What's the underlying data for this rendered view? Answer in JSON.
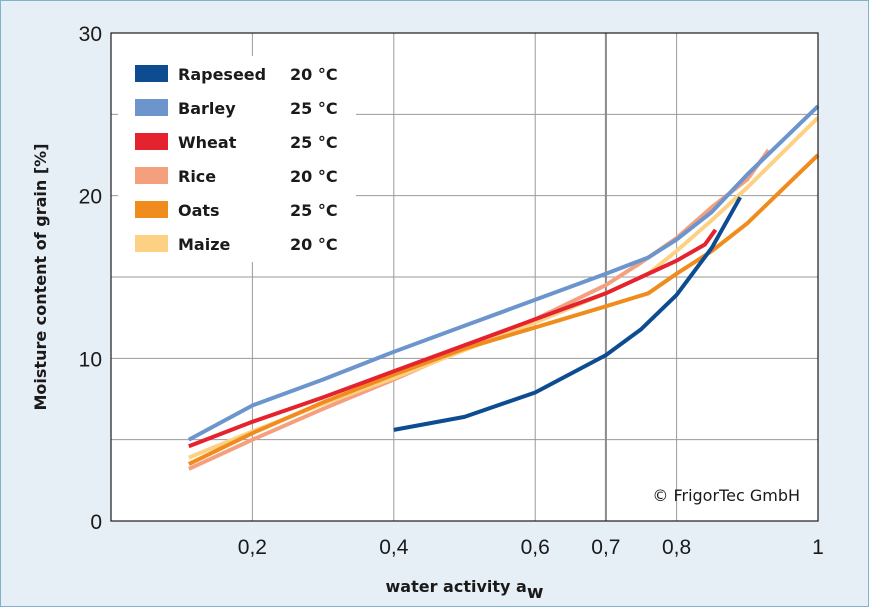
{
  "chart_data": {
    "type": "line",
    "title": "",
    "xlabel": "water activity a",
    "xlabel_subscript": "w",
    "ylabel": "Moisture content of grain [%]",
    "xlim": [
      0,
      1
    ],
    "ylim": [
      0,
      30
    ],
    "x_ticks": [
      {
        "value": 0.2,
        "label": "0,2"
      },
      {
        "value": 0.4,
        "label": "0,4"
      },
      {
        "value": 0.6,
        "label": "0,6"
      },
      {
        "value": 0.7,
        "label": "0,7"
      },
      {
        "value": 0.8,
        "label": "0,8"
      },
      {
        "value": 1.0,
        "label": "1"
      }
    ],
    "y_ticks": [
      {
        "value": 0,
        "label": "0"
      },
      {
        "value": 10,
        "label": "10"
      },
      {
        "value": 20,
        "label": "20"
      },
      {
        "value": 30,
        "label": "30"
      }
    ],
    "y_gridlines": [
      5,
      10,
      15,
      20,
      25
    ],
    "x_gridlines": [
      0.2,
      0.4,
      0.6,
      0.7,
      0.8
    ],
    "grid": true,
    "legend_position": "top-left",
    "annotation": "© FrigorTec GmbH",
    "series": [
      {
        "name": "Rapeseed",
        "temperature": "20 °C",
        "color": "#0e4c92",
        "points": [
          [
            0.4,
            5.6
          ],
          [
            0.5,
            6.4
          ],
          [
            0.6,
            7.9
          ],
          [
            0.7,
            10.2
          ],
          [
            0.75,
            11.8
          ],
          [
            0.8,
            13.9
          ],
          [
            0.85,
            16.8
          ],
          [
            0.89,
            19.9
          ]
        ]
      },
      {
        "name": "Barley",
        "temperature": "25 °C",
        "color": "#6b95cc",
        "points": [
          [
            0.11,
            5.0
          ],
          [
            0.2,
            7.1
          ],
          [
            0.3,
            8.7
          ],
          [
            0.4,
            10.4
          ],
          [
            0.5,
            12.0
          ],
          [
            0.6,
            13.6
          ],
          [
            0.7,
            15.2
          ],
          [
            0.76,
            16.2
          ],
          [
            0.8,
            17.3
          ],
          [
            0.85,
            19.0
          ],
          [
            0.9,
            21.3
          ],
          [
            1.0,
            25.5
          ]
        ]
      },
      {
        "name": "Wheat",
        "temperature": "25 °C",
        "color": "#e4232e",
        "points": [
          [
            0.11,
            4.6
          ],
          [
            0.2,
            6.1
          ],
          [
            0.3,
            7.6
          ],
          [
            0.4,
            9.2
          ],
          [
            0.5,
            10.8
          ],
          [
            0.6,
            12.4
          ],
          [
            0.7,
            14.0
          ],
          [
            0.75,
            15.0
          ],
          [
            0.8,
            16.0
          ],
          [
            0.84,
            17.0
          ],
          [
            0.855,
            17.9
          ]
        ]
      },
      {
        "name": "Rice",
        "temperature": "20 °C",
        "color": "#f4a07e",
        "points": [
          [
            0.11,
            3.2
          ],
          [
            0.2,
            5.0
          ],
          [
            0.3,
            6.9
          ],
          [
            0.4,
            8.7
          ],
          [
            0.5,
            10.6
          ],
          [
            0.6,
            12.4
          ],
          [
            0.7,
            14.5
          ],
          [
            0.75,
            15.9
          ],
          [
            0.8,
            17.4
          ],
          [
            0.85,
            19.3
          ],
          [
            0.9,
            21.0
          ],
          [
            0.93,
            22.8
          ]
        ]
      },
      {
        "name": "Oats",
        "temperature": "25 °C",
        "color": "#f08c1e",
        "points": [
          [
            0.11,
            3.5
          ],
          [
            0.2,
            5.4
          ],
          [
            0.3,
            7.3
          ],
          [
            0.4,
            9.0
          ],
          [
            0.5,
            10.6
          ],
          [
            0.6,
            11.9
          ],
          [
            0.7,
            13.2
          ],
          [
            0.76,
            14.0
          ],
          [
            0.8,
            15.2
          ],
          [
            0.85,
            16.6
          ],
          [
            0.9,
            18.3
          ],
          [
            1.0,
            22.5
          ]
        ]
      },
      {
        "name": "Maize",
        "temperature": "20 °C",
        "color": "#fdd183",
        "points": [
          [
            0.11,
            3.9
          ],
          [
            0.2,
            5.5
          ],
          [
            0.3,
            7.2
          ],
          [
            0.4,
            8.8
          ],
          [
            0.5,
            10.5
          ],
          [
            0.6,
            12.2
          ],
          [
            0.7,
            14.0
          ],
          [
            0.76,
            15.2
          ],
          [
            0.8,
            16.6
          ],
          [
            0.85,
            18.5
          ],
          [
            0.9,
            20.5
          ],
          [
            1.0,
            24.8
          ]
        ]
      }
    ]
  }
}
